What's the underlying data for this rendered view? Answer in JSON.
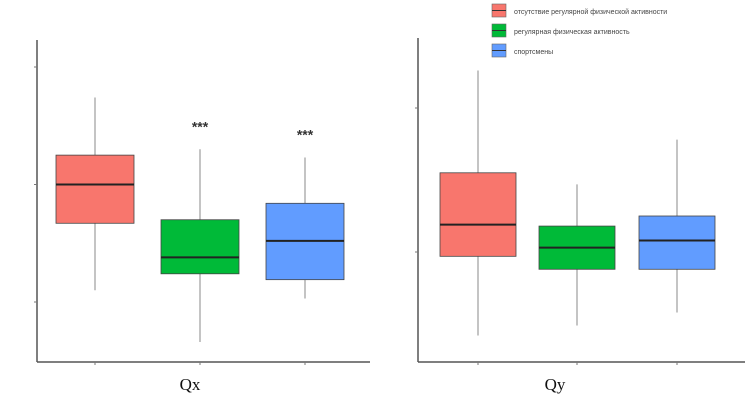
{
  "chart_data": [
    {
      "type": "box",
      "title": "Qx",
      "xlabel": "",
      "ylabel": "",
      "yticks": [
        "",
        "",
        ""
      ],
      "grid": false,
      "groups": [
        {
          "name": "отсутствие регулярной физической активности",
          "color": "#f8766d",
          "min": 0.1,
          "q1": 0.67,
          "median": 1.0,
          "q3": 1.25,
          "max": 1.74,
          "annotation": ""
        },
        {
          "name": "регулярная физическая активность",
          "color": "#00ba38",
          "min": -0.34,
          "q1": 0.24,
          "median": 0.38,
          "q3": 0.7,
          "max": 1.3,
          "annotation": "***"
        },
        {
          "name": "спортсмены",
          "color": "#619cff",
          "min": 0.03,
          "q1": 0.19,
          "median": 0.52,
          "q3": 0.84,
          "max": 1.23,
          "annotation": "***"
        }
      ]
    },
    {
      "type": "box",
      "title": "Qy",
      "xlabel": "",
      "ylabel": "",
      "yticks": [
        "",
        ""
      ],
      "grid": false,
      "groups": [
        {
          "name": "отсутствие регулярной физической активности",
          "color": "#f8766d",
          "min": -0.58,
          "q1": -0.03,
          "median": 0.19,
          "q3": 0.55,
          "max": 1.26,
          "annotation": ""
        },
        {
          "name": "регулярная физическая активность",
          "color": "#00ba38",
          "min": -0.51,
          "q1": -0.12,
          "median": 0.03,
          "q3": 0.18,
          "max": 0.47,
          "annotation": ""
        },
        {
          "name": "спортсмены",
          "color": "#619cff",
          "min": -0.42,
          "q1": -0.12,
          "median": 0.08,
          "q3": 0.25,
          "max": 0.78,
          "annotation": ""
        }
      ]
    }
  ],
  "legend": {
    "placement": "top-right",
    "items": [
      {
        "label": "отсутствие регулярной физической активности",
        "color": "#f8766d"
      },
      {
        "label": "регулярная физическая активность",
        "color": "#00ba38"
      },
      {
        "label": "спортсмены",
        "color": "#619cff"
      }
    ]
  }
}
